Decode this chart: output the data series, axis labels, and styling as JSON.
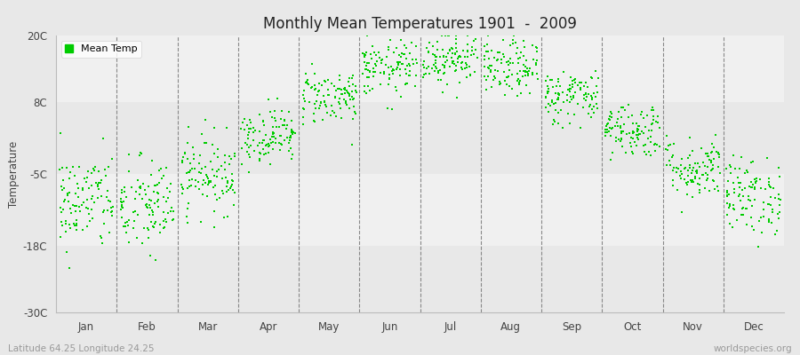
{
  "title": "Monthly Mean Temperatures 1901  -  2009",
  "ylabel": "Temperature",
  "xlabel_labels": [
    "Jan",
    "Feb",
    "Mar",
    "Apr",
    "May",
    "Jun",
    "Jul",
    "Aug",
    "Sep",
    "Oct",
    "Nov",
    "Dec"
  ],
  "ytick_labels": [
    "20C",
    "8C",
    "-5C",
    "-18C",
    "-30C"
  ],
  "ytick_values": [
    20,
    8,
    -5,
    -18,
    -30
  ],
  "ylim": [
    -30,
    20
  ],
  "legend_label": "Mean Temp",
  "dot_color": "#00cc00",
  "fig_bg_color": "#e8e8e8",
  "plot_bg_color": "#ffffff",
  "band_colors": [
    "#f0f0f0",
    "#e0e0e0"
  ],
  "footer_left": "Latitude 64.25 Longitude 24.25",
  "footer_right": "worldspecies.org",
  "seed": 42,
  "n_years": 109,
  "monthly_means": [
    -10,
    -11,
    -5,
    2,
    9,
    14,
    16,
    14,
    9,
    3,
    -4,
    -9
  ],
  "monthly_stds": [
    4.5,
    4.5,
    3.5,
    2.5,
    2.5,
    2.5,
    2.5,
    2.5,
    2.5,
    2.5,
    2.8,
    3.5
  ]
}
